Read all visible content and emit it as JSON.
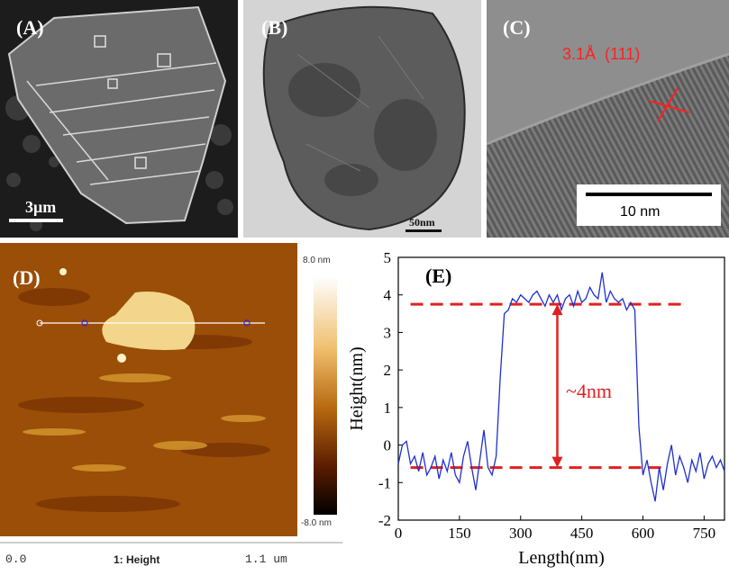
{
  "panels": {
    "A": {
      "label": "(A)",
      "scalebar": "3μm"
    },
    "B": {
      "label": "(B)",
      "scalebar": "50nm"
    },
    "C": {
      "label": "(C)",
      "lattice": "3.1Å  (111)",
      "scalebar": "10 nm"
    },
    "D": {
      "label": "(D)",
      "color_max": "8.0 nm",
      "color_min": "-8.0 nm",
      "axis_start": "0.0",
      "axis_title": "1: Height",
      "axis_end": "1.1 um"
    },
    "E": {
      "label": "(E)",
      "annotation": "~4nm"
    }
  },
  "chart_data": {
    "type": "line",
    "xlabel": "Length(nm)",
    "ylabel": "Height(nm)",
    "xlim": [
      0,
      800
    ],
    "ylim": [
      -2,
      5
    ],
    "xticks": [
      0,
      150,
      300,
      450,
      600,
      750
    ],
    "yticks": [
      -2,
      -1,
      0,
      1,
      2,
      3,
      4,
      5
    ],
    "series": [
      {
        "color": "#2030d0",
        "x": [
          0,
          10,
          20,
          30,
          40,
          50,
          60,
          70,
          80,
          90,
          100,
          110,
          120,
          130,
          140,
          150,
          160,
          170,
          180,
          190,
          200,
          210,
          220,
          230,
          240,
          250,
          260,
          270,
          280,
          290,
          300,
          310,
          320,
          330,
          340,
          350,
          360,
          370,
          380,
          390,
          400,
          410,
          420,
          430,
          440,
          450,
          460,
          470,
          480,
          490,
          500,
          510,
          520,
          530,
          540,
          550,
          560,
          570,
          580,
          590,
          600,
          610,
          620,
          630,
          640,
          650,
          660,
          670,
          680,
          690,
          700,
          710,
          720,
          730,
          740,
          750,
          760,
          770,
          780,
          790,
          800
        ],
        "y": [
          -0.5,
          0.0,
          0.1,
          -0.5,
          -0.3,
          -0.7,
          -0.2,
          -0.8,
          -0.6,
          -0.3,
          -0.9,
          -0.4,
          -0.7,
          -0.2,
          -0.8,
          -1.0,
          -0.3,
          0.1,
          -0.6,
          -1.2,
          -0.4,
          0.4,
          -0.6,
          -0.8,
          -0.3,
          1.8,
          3.5,
          3.6,
          3.9,
          3.8,
          4.0,
          3.9,
          3.8,
          4.0,
          4.1,
          3.9,
          3.7,
          4.0,
          3.8,
          4.0,
          3.6,
          3.9,
          4.0,
          3.7,
          4.1,
          3.8,
          3.9,
          4.2,
          4.0,
          3.9,
          4.6,
          3.8,
          4.1,
          3.9,
          3.8,
          3.9,
          3.6,
          3.8,
          3.6,
          0.5,
          -0.8,
          -0.4,
          -1.0,
          -1.5,
          -0.6,
          -1.2,
          -0.5,
          0.0,
          -0.8,
          -0.3,
          -0.6,
          -1.0,
          -0.4,
          -0.7,
          -0.2,
          -0.9,
          -0.5,
          -0.3,
          -0.6,
          -0.4,
          -0.7
        ]
      }
    ],
    "reference_lines": [
      3.75,
      -0.6
    ],
    "arrow": {
      "x": 390,
      "y_from": 3.75,
      "y_to": -0.6
    },
    "colors": {
      "line": "#2030d0",
      "reference": "#e02020"
    }
  }
}
